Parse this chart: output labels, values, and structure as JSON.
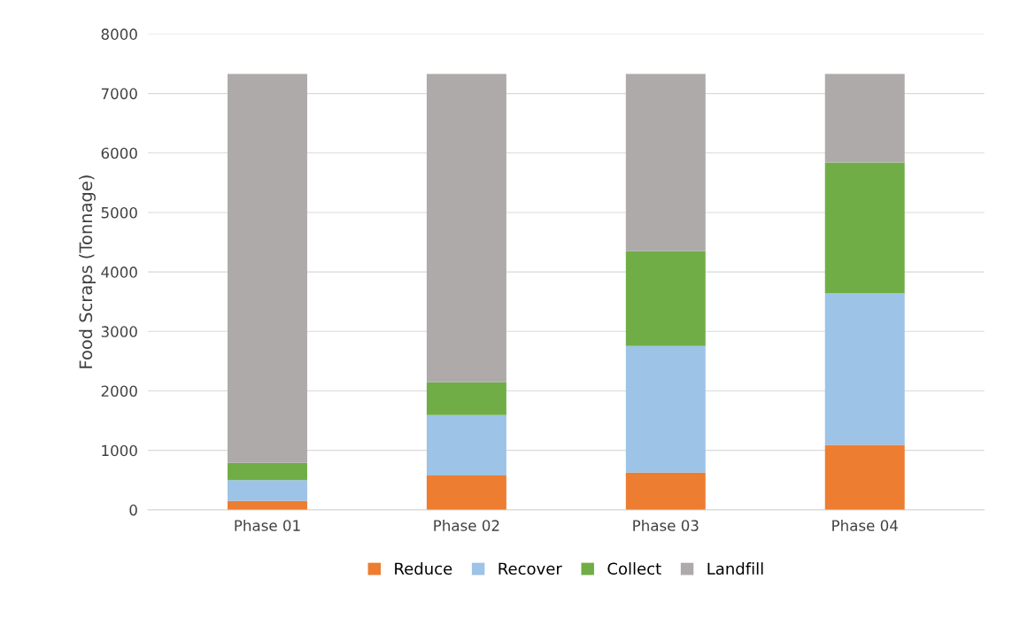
{
  "chart_data": {
    "type": "bar",
    "stacked": true,
    "ylabel": "Food Scraps (Tonnage)",
    "categories": [
      "Phase 01",
      "Phase 02",
      "Phase 03",
      "Phase 04"
    ],
    "series": [
      {
        "name": "Reduce",
        "color": "#ed7d31",
        "values": [
          150,
          580,
          625,
          1090
        ]
      },
      {
        "name": "Recover",
        "color": "#9dc3e6",
        "values": [
          350,
          1015,
          2130,
          2550
        ]
      },
      {
        "name": "Collect",
        "color": "#70ad47",
        "values": [
          290,
          550,
          1595,
          2200
        ]
      },
      {
        "name": "Landfill",
        "color": "#aeaaaa",
        "values": [
          6540,
          5185,
          2980,
          1490
        ]
      }
    ],
    "ylim": [
      0,
      8000
    ],
    "yticks": [
      0,
      1000,
      2000,
      3000,
      4000,
      5000,
      6000,
      7000,
      8000
    ],
    "grid": "y",
    "legend": "bottom"
  }
}
